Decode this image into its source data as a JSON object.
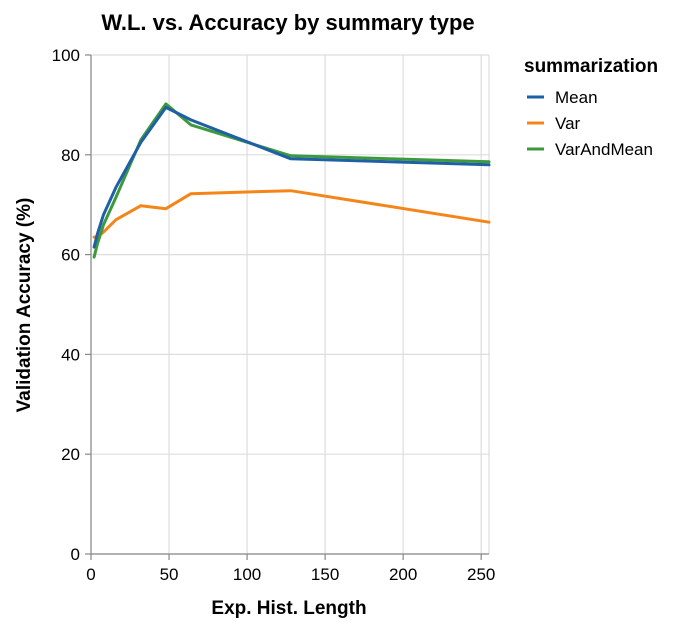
{
  "chart_data": {
    "type": "line",
    "title": "W.L. vs. Accuracy by summary type",
    "xlabel": "Exp. Hist. Length",
    "ylabel": "Validation Accuracy (%)",
    "xlim": [
      0,
      255
    ],
    "ylim": [
      0,
      100
    ],
    "x_ticks": [
      0,
      50,
      100,
      150,
      200,
      250
    ],
    "y_ticks": [
      0,
      20,
      40,
      60,
      80,
      100
    ],
    "grid": true,
    "legend": {
      "title": "summarization",
      "position": "right"
    },
    "series": [
      {
        "name": "Mean",
        "color": "#1f5fa6",
        "points": [
          [
            2,
            61.5
          ],
          [
            4,
            64
          ],
          [
            8,
            68
          ],
          [
            16,
            73.5
          ],
          [
            32,
            82.5
          ],
          [
            48,
            89.5
          ],
          [
            64,
            87
          ],
          [
            128,
            79.2
          ],
          [
            255,
            78
          ]
        ]
      },
      {
        "name": "Var",
        "color": "#f58518",
        "points": [
          [
            2,
            63.5
          ],
          [
            4,
            63.5
          ],
          [
            8,
            64.5
          ],
          [
            16,
            67
          ],
          [
            32,
            69.8
          ],
          [
            48,
            69.2
          ],
          [
            64,
            72.2
          ],
          [
            128,
            72.8
          ],
          [
            255,
            66.5
          ]
        ]
      },
      {
        "name": "VarAndMean",
        "color": "#3c9a3c",
        "points": [
          [
            2,
            59.5
          ],
          [
            4,
            62
          ],
          [
            8,
            66
          ],
          [
            16,
            71.5
          ],
          [
            32,
            83
          ],
          [
            48,
            90.2
          ],
          [
            64,
            86
          ],
          [
            128,
            79.8
          ],
          [
            255,
            78.6
          ]
        ]
      }
    ]
  }
}
